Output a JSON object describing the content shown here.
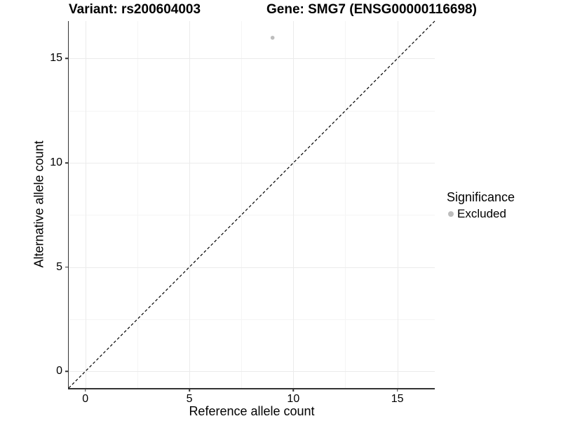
{
  "titles": {
    "variant": "Variant: rs200604003",
    "gene": "Gene: SMG7 (ENSG00000116698)"
  },
  "axes": {
    "x": {
      "label": "Reference allele count",
      "tick_labels": [
        "0",
        "5",
        "10",
        "15"
      ]
    },
    "y": {
      "label": "Alternative allele count",
      "tick_labels": [
        "0",
        "5",
        "10",
        "15"
      ]
    }
  },
  "legend": {
    "title": "Significance",
    "position": "right",
    "items": [
      {
        "label": "Excluded",
        "color": "#bdbdbd",
        "marker": "circle"
      }
    ]
  },
  "colors": {
    "background": "#ffffff",
    "text": "#000000",
    "axis_line": "#333333",
    "major_grid": "#ebebeb",
    "minor_grid": "#f5f5f5",
    "point": "#bdbdbd",
    "identity_line": "#000000"
  },
  "chart_data": {
    "type": "scatter",
    "title": "Variant: rs200604003",
    "title2": "Gene: SMG7 (ENSG00000116698)",
    "xlabel": "Reference allele count",
    "ylabel": "Alternative allele count",
    "xlim": [
      -0.8,
      16.8
    ],
    "ylim": [
      -0.8,
      16.8
    ],
    "x_major_ticks": [
      0,
      5,
      10,
      15
    ],
    "x_minor_ticks": [
      2.5,
      7.5,
      12.5
    ],
    "y_major_ticks": [
      0,
      5,
      10,
      15
    ],
    "y_minor_ticks": [
      2.5,
      7.5,
      12.5
    ],
    "grid": "major+minor",
    "legend_position": "right",
    "identity_line": {
      "slope": 1,
      "intercept": 0,
      "style": "dashed"
    },
    "series": [
      {
        "name": "Excluded",
        "color": "#bdbdbd",
        "marker": "circle",
        "points": [
          [
            9,
            16
          ]
        ]
      }
    ]
  }
}
